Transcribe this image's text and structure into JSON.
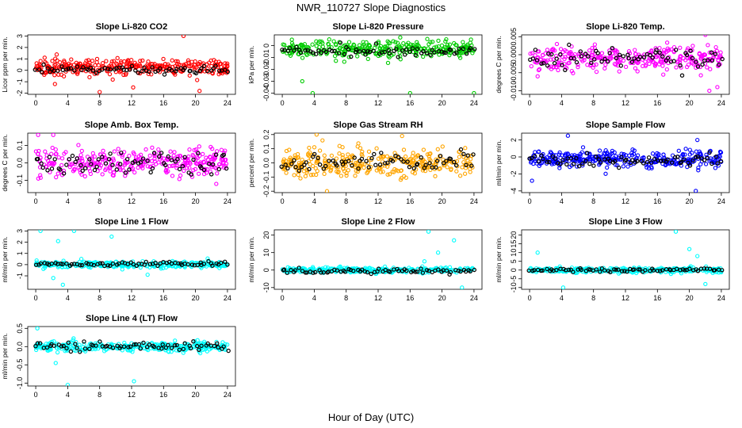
{
  "title": "NWR_110727  Slope Diagnostics",
  "xlabel": "Hour of Day (UTC)",
  "chart_data": [
    {
      "type": "scatter",
      "title": "Slope Li-820 CO2",
      "ylabel": "Licor ppm per min.",
      "color": "#ff0000",
      "xlim": [
        -1,
        25
      ],
      "ylim": [
        -2.1,
        3.1
      ],
      "yticks": [
        -2,
        -1,
        0,
        1,
        2,
        3
      ],
      "xticks": [
        0,
        4,
        8,
        12,
        16,
        20,
        24
      ],
      "center": 0.3,
      "spread": 0.6,
      "black_center": 0.05,
      "black_spread": 0.25,
      "outliers": [
        [
          8,
          -1.9
        ],
        [
          18.5,
          3.0
        ],
        [
          12.2,
          -1.5
        ],
        [
          20.5,
          -1.8
        ],
        [
          2.4,
          -1.2
        ]
      ]
    },
    {
      "type": "scatter",
      "title": "Slope Li-820 Pressure",
      "ylabel": "kPa per min.",
      "color": "#00cc00",
      "xlim": [
        -1,
        25
      ],
      "ylim": [
        -0.041,
        0.009
      ],
      "yticks": [
        -0.04,
        -0.03,
        -0.02,
        -0.01,
        0
      ],
      "xticks": [
        0,
        4,
        8,
        12,
        16,
        20,
        24
      ],
      "center": -0.003,
      "spread": 0.007,
      "black_center": -0.004,
      "black_spread": 0.004,
      "outliers": [
        [
          1.2,
          0.005
        ],
        [
          3.8,
          -0.04
        ],
        [
          16,
          -0.04
        ],
        [
          24,
          -0.04
        ],
        [
          2.5,
          -0.03
        ]
      ]
    },
    {
      "type": "scatter",
      "title": "Slope Li-820 Temp.",
      "ylabel": "degrees C per min.",
      "color": "#ff00ff",
      "xlim": [
        -1,
        25
      ],
      "ylim": [
        -0.011,
        0.0055
      ],
      "yticks": [
        -0.01,
        -0.005,
        0,
        0.005
      ],
      "ytick_labels": [
        "-0.010",
        "-0.005",
        "0.000",
        "0.005"
      ],
      "xticks": [
        0,
        4,
        8,
        12,
        16,
        20,
        24
      ],
      "center": -0.001,
      "spread": 0.003,
      "black_center": -0.0008,
      "black_spread": 0.0025,
      "outliers": [
        [
          22,
          0.0055
        ],
        [
          23.5,
          -0.009
        ],
        [
          22.5,
          -0.01
        ],
        [
          1,
          -0.006
        ]
      ]
    },
    {
      "type": "scatter",
      "title": "Slope Amb. Box Temp.",
      "ylabel": "degrees C per min.",
      "color": "#ff00ff",
      "xlim": [
        -1,
        25
      ],
      "ylim": [
        -0.17,
        0.17
      ],
      "yticks": [
        -0.1,
        0,
        0.1
      ],
      "ytick_labels": [
        "-0.1",
        "0.0",
        "0.1"
      ],
      "xticks": [
        0,
        4,
        8,
        12,
        16,
        20,
        24
      ],
      "center": 0,
      "spread": 0.07,
      "black_center": 0,
      "black_spread": 0.06,
      "outliers": [
        [
          0.3,
          0.16
        ],
        [
          2.2,
          0.16
        ],
        [
          22.6,
          -0.12
        ]
      ]
    },
    {
      "type": "scatter",
      "title": "Slope Gas Stream RH",
      "ylabel": "percent per min.",
      "color": "#ffa500",
      "xlim": [
        -1,
        25
      ],
      "ylim": [
        -0.21,
        0.21
      ],
      "yticks": [
        -0.2,
        -0.1,
        0,
        0.1,
        0.2
      ],
      "ytick_labels": [
        "-0.2",
        "-0.1",
        "0.0",
        "0.1",
        "0.2"
      ],
      "xticks": [
        0,
        4,
        8,
        12,
        16,
        20,
        24
      ],
      "center": 0,
      "spread": 0.09,
      "black_center": 0,
      "black_spread": 0.06,
      "outliers": [
        [
          4.3,
          0.2
        ],
        [
          5.6,
          -0.2
        ],
        [
          15,
          0.19
        ]
      ]
    },
    {
      "type": "scatter",
      "title": "Slope Sample Flow",
      "ylabel": "ml/min per min.",
      "color": "#0000ff",
      "xlim": [
        -1,
        25
      ],
      "ylim": [
        -4.2,
        2.8
      ],
      "yticks": [
        -4,
        -2,
        0,
        2
      ],
      "xticks": [
        0,
        4,
        8,
        12,
        16,
        20,
        24
      ],
      "center": -0.2,
      "spread": 0.9,
      "black_center": -0.5,
      "black_spread": 0.6,
      "outliers": [
        [
          4.8,
          2.5
        ],
        [
          21,
          2.0
        ],
        [
          20.8,
          -4.0
        ],
        [
          0.3,
          -2.8
        ]
      ]
    },
    {
      "type": "scatter",
      "title": "Slope Line 1 Flow",
      "ylabel": "ml/min per min.",
      "color": "#00ffff",
      "xlim": [
        -1,
        25
      ],
      "ylim": [
        -2.2,
        3.1
      ],
      "yticks": [
        -1,
        0,
        1,
        2,
        3
      ],
      "xticks": [
        0,
        4,
        8,
        12,
        16,
        20,
        24
      ],
      "center": 0,
      "spread": 0.25,
      "black_center": 0.05,
      "black_spread": 0.15,
      "outliers": [
        [
          0.6,
          3
        ],
        [
          4.8,
          3
        ],
        [
          2.8,
          2.1
        ],
        [
          3.4,
          -1.8
        ],
        [
          9.5,
          2.5
        ],
        [
          14,
          -0.9
        ],
        [
          2.2,
          -1.2
        ]
      ]
    },
    {
      "type": "scatter",
      "title": "Slope Line 2 Flow",
      "ylabel": "ml/min per min.",
      "color": "#00ffff",
      "xlim": [
        -1,
        25
      ],
      "ylim": [
        -11,
        23
      ],
      "yticks": [
        -10,
        0,
        10,
        20
      ],
      "xticks": [
        0,
        4,
        8,
        12,
        16,
        20,
        24
      ],
      "center": 0,
      "spread": 1.3,
      "black_center": -0.5,
      "black_spread": 1.0,
      "outliers": [
        [
          18.3,
          22
        ],
        [
          19.5,
          10
        ],
        [
          21.5,
          17
        ],
        [
          22.5,
          -10
        ],
        [
          17.8,
          5
        ]
      ]
    },
    {
      "type": "scatter",
      "title": "Slope Line 3 Flow",
      "ylabel": "ml/min per min.",
      "color": "#00ffff",
      "xlim": [
        -1,
        25
      ],
      "ylim": [
        -11,
        23
      ],
      "yticks": [
        -10,
        -5,
        0,
        5,
        10,
        15,
        20
      ],
      "xticks": [
        0,
        4,
        8,
        12,
        16,
        20,
        24
      ],
      "center": 0,
      "spread": 1.3,
      "black_center": 0,
      "black_spread": 1.0,
      "outliers": [
        [
          18.3,
          22
        ],
        [
          4.2,
          -10
        ],
        [
          22,
          -8
        ],
        [
          1,
          10
        ],
        [
          20,
          12
        ],
        [
          21,
          8
        ]
      ]
    },
    {
      "type": "scatter",
      "title": "Slope Line 4 (LT) Flow",
      "ylabel": "ml/min per min.",
      "color": "#00ffff",
      "xlim": [
        -1,
        25
      ],
      "ylim": [
        -1.08,
        0.55
      ],
      "yticks": [
        -1,
        -0.5,
        0,
        0.5
      ],
      "ytick_labels": [
        "-1.0",
        "-0.5",
        "0.0",
        "0.5"
      ],
      "xticks": [
        0,
        4,
        8,
        12,
        16,
        20,
        24
      ],
      "center": 0,
      "spread": 0.12,
      "black_center": 0,
      "black_spread": 0.1,
      "outliers": [
        [
          4,
          -1.05
        ],
        [
          12.3,
          -0.95
        ],
        [
          0.2,
          0.5
        ],
        [
          2.5,
          -0.45
        ]
      ]
    }
  ]
}
